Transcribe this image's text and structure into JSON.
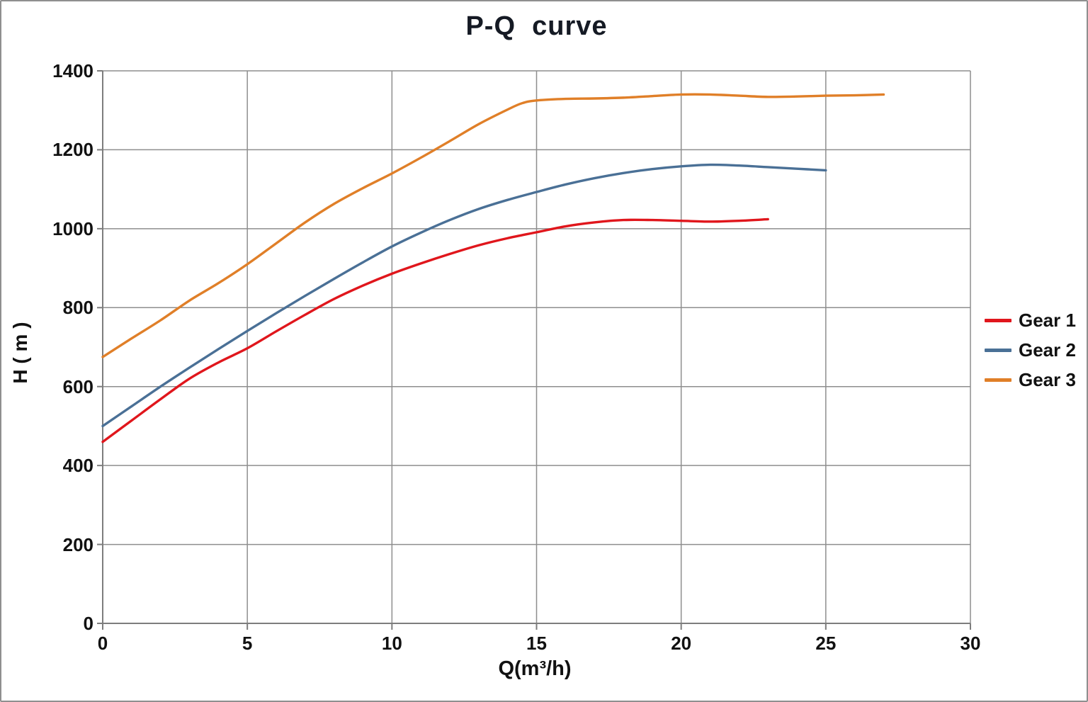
{
  "chart_data": {
    "type": "line",
    "title": "P-Q  curve",
    "xlabel": "Q(m³/h)",
    "ylabel": "H ( m )",
    "xlim": [
      0,
      30
    ],
    "ylim": [
      0,
      1400
    ],
    "x_ticks": [
      0,
      5,
      10,
      15,
      20,
      25,
      30
    ],
    "y_ticks": [
      0,
      200,
      400,
      600,
      800,
      1000,
      1200,
      1400
    ],
    "grid": true,
    "legend_position": "right-middle",
    "style": {
      "grid_color": "#8e8e8e",
      "axis_color": "#7d7d7d",
      "text_color": "#111111",
      "background_color": "#ffffff",
      "outer_border_color": "#8f8f8f"
    },
    "series": [
      {
        "name": "Gear 1",
        "color": "#e0161c",
        "points": [
          [
            0,
            460
          ],
          [
            1,
            514
          ],
          [
            2,
            568
          ],
          [
            3,
            620
          ],
          [
            4,
            661
          ],
          [
            5,
            697
          ],
          [
            6,
            740
          ],
          [
            7,
            782
          ],
          [
            8,
            822
          ],
          [
            9,
            856
          ],
          [
            10,
            886
          ],
          [
            11,
            912
          ],
          [
            12,
            936
          ],
          [
            13,
            958
          ],
          [
            14,
            976
          ],
          [
            15,
            991
          ],
          [
            16,
            1006
          ],
          [
            17,
            1016
          ],
          [
            18,
            1022
          ],
          [
            19,
            1022
          ],
          [
            20,
            1020
          ],
          [
            21,
            1018
          ],
          [
            22,
            1020
          ],
          [
            23,
            1024
          ]
        ]
      },
      {
        "name": "Gear 2",
        "color": "#4a7096",
        "points": [
          [
            0,
            500
          ],
          [
            1,
            550
          ],
          [
            2,
            600
          ],
          [
            3,
            648
          ],
          [
            4,
            695
          ],
          [
            5,
            741
          ],
          [
            6,
            786
          ],
          [
            7,
            830
          ],
          [
            8,
            873
          ],
          [
            9,
            915
          ],
          [
            10,
            955
          ],
          [
            11,
            990
          ],
          [
            12,
            1022
          ],
          [
            13,
            1050
          ],
          [
            14,
            1073
          ],
          [
            15,
            1093
          ],
          [
            16,
            1112
          ],
          [
            17,
            1128
          ],
          [
            18,
            1141
          ],
          [
            19,
            1151
          ],
          [
            20,
            1158
          ],
          [
            21,
            1162
          ],
          [
            22,
            1160
          ],
          [
            23,
            1156
          ],
          [
            24,
            1152
          ],
          [
            25,
            1148
          ]
        ]
      },
      {
        "name": "Gear 3",
        "color": "#e07f28",
        "points": [
          [
            0,
            675
          ],
          [
            1,
            722
          ],
          [
            2,
            768
          ],
          [
            3,
            818
          ],
          [
            4,
            862
          ],
          [
            5,
            910
          ],
          [
            6,
            963
          ],
          [
            7,
            1016
          ],
          [
            8,
            1063
          ],
          [
            9,
            1103
          ],
          [
            10,
            1140
          ],
          [
            11,
            1180
          ],
          [
            12,
            1222
          ],
          [
            13,
            1265
          ],
          [
            14,
            1302
          ],
          [
            14.5,
            1318
          ],
          [
            15,
            1325
          ],
          [
            16,
            1329
          ],
          [
            17,
            1330
          ],
          [
            18,
            1332
          ],
          [
            19,
            1336
          ],
          [
            20,
            1340
          ],
          [
            21,
            1340
          ],
          [
            22,
            1337
          ],
          [
            23,
            1334
          ],
          [
            24,
            1335
          ],
          [
            25,
            1337
          ],
          [
            26,
            1338
          ],
          [
            27,
            1340
          ]
        ]
      }
    ]
  }
}
